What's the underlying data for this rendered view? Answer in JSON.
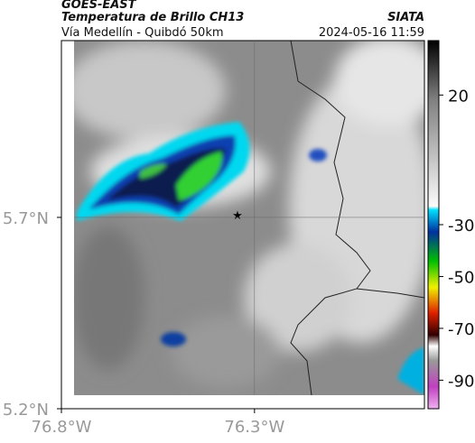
{
  "header": {
    "title": "GOES-EAST",
    "subtitle": "Temperatura de Brillo CH13",
    "source": "SIATA",
    "route": "Vía Medellín - Quibdó 50km",
    "timestamp": "2024-05-16 11:59"
  },
  "map": {
    "xlim": [
      -76.8,
      -75.86
    ],
    "ylim": [
      5.2,
      6.162
    ],
    "grid": true,
    "xticks": [
      {
        "value": -76.8,
        "label": "76.8°W"
      },
      {
        "value": -76.3,
        "label": "76.3°W"
      }
    ],
    "yticks": [
      {
        "value": 5.7,
        "label": "5.7°N"
      },
      {
        "value": 5.2,
        "label": "5.2°N"
      }
    ]
  },
  "colorbar": {
    "lim": [
      -101,
      41
    ],
    "ticks": [
      20,
      -30,
      -50,
      -70,
      -90
    ]
  }
}
